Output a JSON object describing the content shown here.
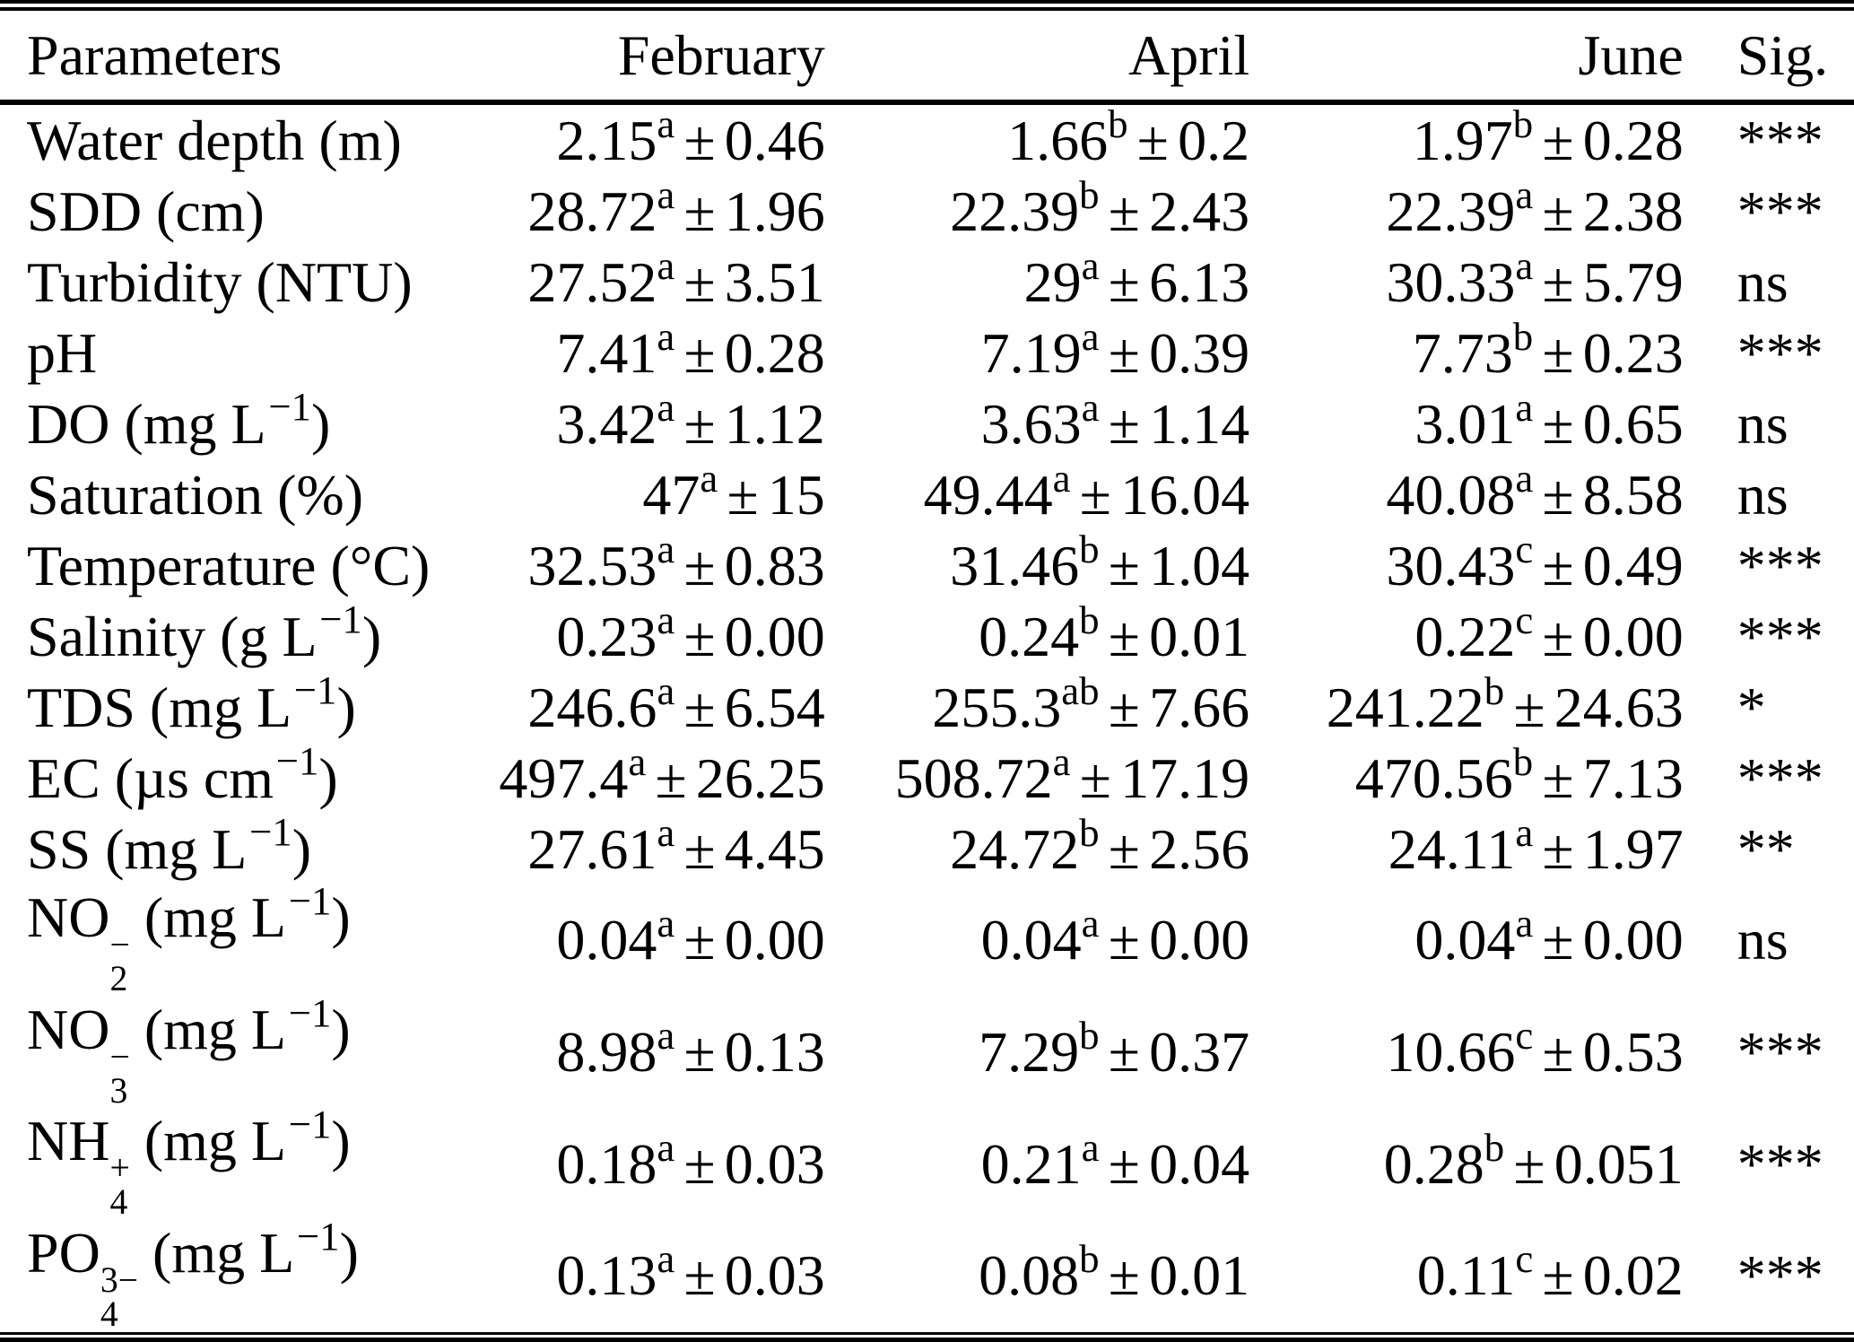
{
  "page": {
    "background": "#ffffff",
    "text_color": "#000000"
  },
  "table": {
    "headers": {
      "param": "Parameters",
      "feb": "February",
      "apr": "April",
      "jun": "June",
      "sig": "Sig."
    },
    "symbols": {
      "pm": "±",
      "open": "(",
      "close": ")"
    },
    "rows": [
      {
        "name": "Water depth",
        "unit": "m",
        "feb": {
          "m": "2.15",
          "g": "a",
          "sd": "0.46"
        },
        "apr": {
          "m": "1.66",
          "g": "b",
          "sd": "0.2"
        },
        "jun": {
          "m": "1.97",
          "g": "b",
          "sd": "0.28"
        },
        "sig": "***"
      },
      {
        "name": "SDD",
        "unit": "cm",
        "feb": {
          "m": "28.72",
          "g": "a",
          "sd": "1.96"
        },
        "apr": {
          "m": "22.39",
          "g": "b",
          "sd": "2.43"
        },
        "jun": {
          "m": "22.39",
          "g": "a",
          "sd": "2.38"
        },
        "sig": "***"
      },
      {
        "name": "Turbidity",
        "unit": "NTU",
        "feb": {
          "m": "27.52",
          "g": "a",
          "sd": "3.51"
        },
        "apr": {
          "m": "29",
          "g": "a",
          "sd": "6.13"
        },
        "jun": {
          "m": "30.33",
          "g": "a",
          "sd": "5.79"
        },
        "sig": "ns"
      },
      {
        "name": "pH",
        "feb": {
          "m": "7.41",
          "g": "a",
          "sd": "0.28"
        },
        "apr": {
          "m": "7.19",
          "g": "a",
          "sd": "0.39"
        },
        "jun": {
          "m": "7.73",
          "g": "b",
          "sd": "0.23"
        },
        "sig": "***"
      },
      {
        "name": "DO",
        "unit": "mg L",
        "unit_exp": "−1",
        "feb": {
          "m": "3.42",
          "g": "a",
          "sd": "1.12"
        },
        "apr": {
          "m": "3.63",
          "g": "a",
          "sd": "1.14"
        },
        "jun": {
          "m": "3.01",
          "g": "a",
          "sd": "0.65"
        },
        "sig": "ns"
      },
      {
        "name": "Saturation",
        "unit": "%",
        "feb": {
          "m": "47",
          "g": "a",
          "sd": "15"
        },
        "apr": {
          "m": "49.44",
          "g": "a",
          "sd": "16.04"
        },
        "jun": {
          "m": "40.08",
          "g": "a",
          "sd": "8.58"
        },
        "sig": "ns"
      },
      {
        "name": "Temperature",
        "unit": "°C",
        "feb": {
          "m": "32.53",
          "g": "a",
          "sd": "0.83"
        },
        "apr": {
          "m": "31.46",
          "g": "b",
          "sd": "1.04"
        },
        "jun": {
          "m": "30.43",
          "g": "c",
          "sd": "0.49"
        },
        "sig": "***"
      },
      {
        "name": "Salinity",
        "unit": "g L",
        "unit_exp": "−1",
        "feb": {
          "m": "0.23",
          "g": "a",
          "sd": "0.00"
        },
        "apr": {
          "m": "0.24",
          "g": "b",
          "sd": "0.01"
        },
        "jun": {
          "m": "0.22",
          "g": "c",
          "sd": "0.00"
        },
        "sig": "***"
      },
      {
        "name": "TDS",
        "unit": "mg L",
        "unit_exp": "−1",
        "feb": {
          "m": "246.6",
          "g": "a",
          "sd": "6.54"
        },
        "apr": {
          "m": "255.3",
          "g": "ab",
          "sd": "7.66"
        },
        "jun": {
          "m": "241.22",
          "g": "b",
          "sd": "24.63"
        },
        "sig": "*"
      },
      {
        "name": "EC",
        "unit": "µs cm",
        "unit_exp": "−1",
        "feb": {
          "m": "497.4",
          "g": "a",
          "sd": "26.25"
        },
        "apr": {
          "m": "508.72",
          "g": "a",
          "sd": "17.19"
        },
        "jun": {
          "m": "470.56",
          "g": "b",
          "sd": "7.13"
        },
        "sig": "***"
      },
      {
        "name": "SS",
        "unit": "mg L",
        "unit_exp": "−1",
        "feb": {
          "m": "27.61",
          "g": "a",
          "sd": "4.45"
        },
        "apr": {
          "m": "24.72",
          "g": "b",
          "sd": "2.56"
        },
        "jun": {
          "m": "24.11",
          "g": "a",
          "sd": "1.97"
        },
        "sig": "**"
      },
      {
        "name": "NO",
        "ion_sub": "2",
        "ion_sup": "−",
        "unit": "mg L",
        "unit_exp": "−1",
        "feb": {
          "m": "0.04",
          "g": "a",
          "sd": "0.00"
        },
        "apr": {
          "m": "0.04",
          "g": "a",
          "sd": "0.00"
        },
        "jun": {
          "m": "0.04",
          "g": "a",
          "sd": "0.00"
        },
        "sig": "ns"
      },
      {
        "name": "NO",
        "ion_sub": "3",
        "ion_sup": "−",
        "unit": "mg L",
        "unit_exp": "−1",
        "feb": {
          "m": "8.98",
          "g": "a",
          "sd": "0.13"
        },
        "apr": {
          "m": "7.29",
          "g": "b",
          "sd": "0.37"
        },
        "jun": {
          "m": "10.66",
          "g": "c",
          "sd": "0.53"
        },
        "sig": "***"
      },
      {
        "name": "NH",
        "ion_sub": "4",
        "ion_sup": "+",
        "unit": "mg L",
        "unit_exp": "−1",
        "feb": {
          "m": "0.18",
          "g": "a",
          "sd": "0.03"
        },
        "apr": {
          "m": "0.21",
          "g": "a",
          "sd": "0.04"
        },
        "jun": {
          "m": "0.28",
          "g": "b",
          "sd": "0.051"
        },
        "sig": "***"
      },
      {
        "name": "PO",
        "ion_sub": "4",
        "ion_sup": "3−",
        "unit": "mg L",
        "unit_exp": "−1",
        "feb": {
          "m": "0.13",
          "g": "a",
          "sd": "0.03"
        },
        "apr": {
          "m": "0.08",
          "g": "b",
          "sd": "0.01"
        },
        "jun": {
          "m": "0.11",
          "g": "c",
          "sd": "0.02"
        },
        "sig": "***"
      }
    ]
  }
}
